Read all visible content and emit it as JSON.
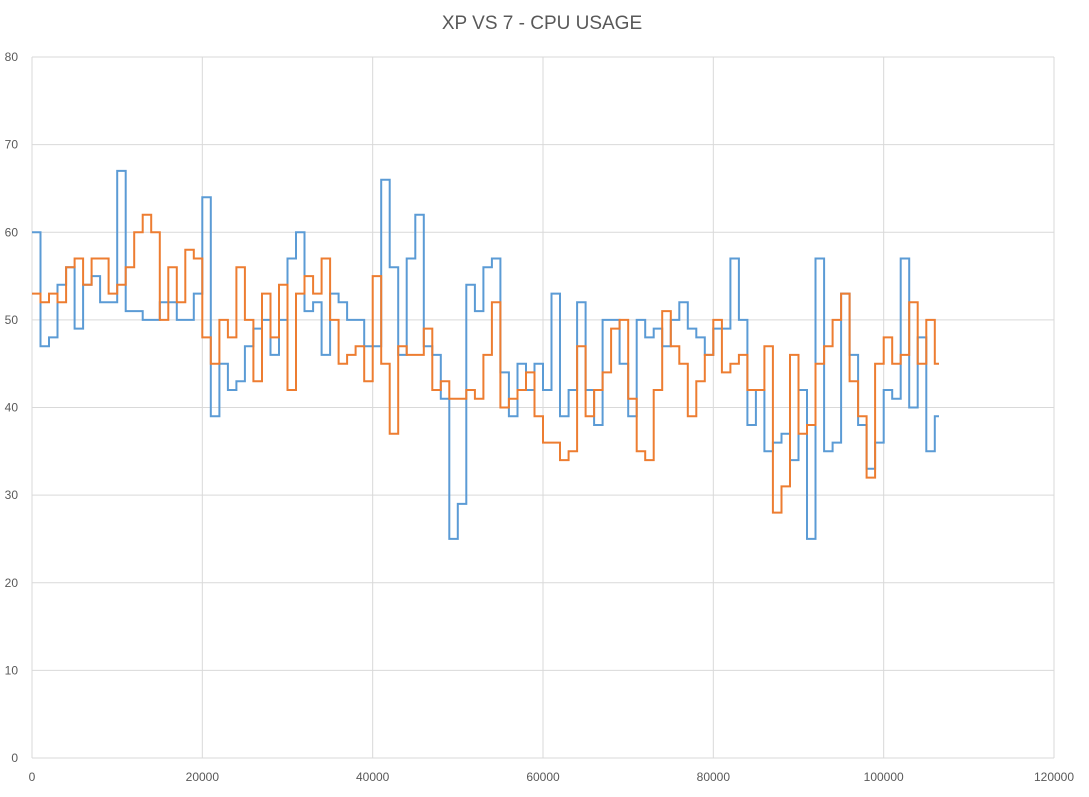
{
  "chart_data": {
    "type": "line",
    "title": "XP VS 7 - CPU USAGE",
    "xlabel": "",
    "ylabel": "",
    "xlim": [
      0,
      120000
    ],
    "ylim": [
      0,
      80
    ],
    "xticks": [
      0,
      20000,
      40000,
      60000,
      80000,
      100000,
      120000
    ],
    "yticks": [
      0,
      10,
      20,
      30,
      40,
      50,
      60,
      70,
      80
    ],
    "grid": true,
    "legend": "none",
    "x_step": 1000,
    "series": [
      {
        "color": "#5B9BD5",
        "values": [
          60,
          47,
          48,
          54,
          56,
          49,
          54,
          55,
          52,
          52,
          67,
          51,
          51,
          50,
          50,
          52,
          52,
          50,
          50,
          53,
          64,
          39,
          45,
          42,
          43,
          47,
          49,
          50,
          46,
          50,
          57,
          60,
          51,
          52,
          46,
          53,
          52,
          50,
          50,
          47,
          47,
          66,
          56,
          46,
          57,
          62,
          47,
          46,
          41,
          25,
          29,
          54,
          51,
          56,
          57,
          44,
          39,
          45,
          42,
          45,
          42,
          53,
          39,
          42,
          52,
          42,
          38,
          50,
          50,
          45,
          39,
          50,
          48,
          49,
          47,
          50,
          52,
          49,
          48,
          46,
          49,
          49,
          57,
          50,
          38,
          42,
          35,
          36,
          37,
          34,
          42,
          25,
          57,
          35,
          36,
          53,
          46,
          38,
          33,
          36,
          42,
          41,
          57,
          40,
          48,
          35,
          39
        ]
      },
      {
        "color": "#ED7D31",
        "values": [
          53,
          52,
          53,
          52,
          56,
          57,
          54,
          57,
          57,
          53,
          54,
          56,
          60,
          62,
          60,
          50,
          56,
          52,
          58,
          57,
          48,
          45,
          50,
          48,
          56,
          50,
          43,
          53,
          48,
          54,
          42,
          53,
          55,
          53,
          57,
          50,
          45,
          46,
          47,
          43,
          55,
          45,
          37,
          47,
          46,
          46,
          49,
          42,
          43,
          41,
          41,
          42,
          41,
          46,
          52,
          40,
          41,
          42,
          44,
          39,
          36,
          36,
          34,
          35,
          47,
          39,
          42,
          44,
          49,
          50,
          41,
          35,
          34,
          42,
          51,
          47,
          45,
          39,
          43,
          46,
          50,
          44,
          45,
          46,
          42,
          42,
          47,
          28,
          31,
          46,
          37,
          38,
          45,
          47,
          50,
          53,
          43,
          39,
          32,
          45,
          48,
          45,
          46,
          52,
          45,
          50,
          45
        ]
      }
    ]
  }
}
